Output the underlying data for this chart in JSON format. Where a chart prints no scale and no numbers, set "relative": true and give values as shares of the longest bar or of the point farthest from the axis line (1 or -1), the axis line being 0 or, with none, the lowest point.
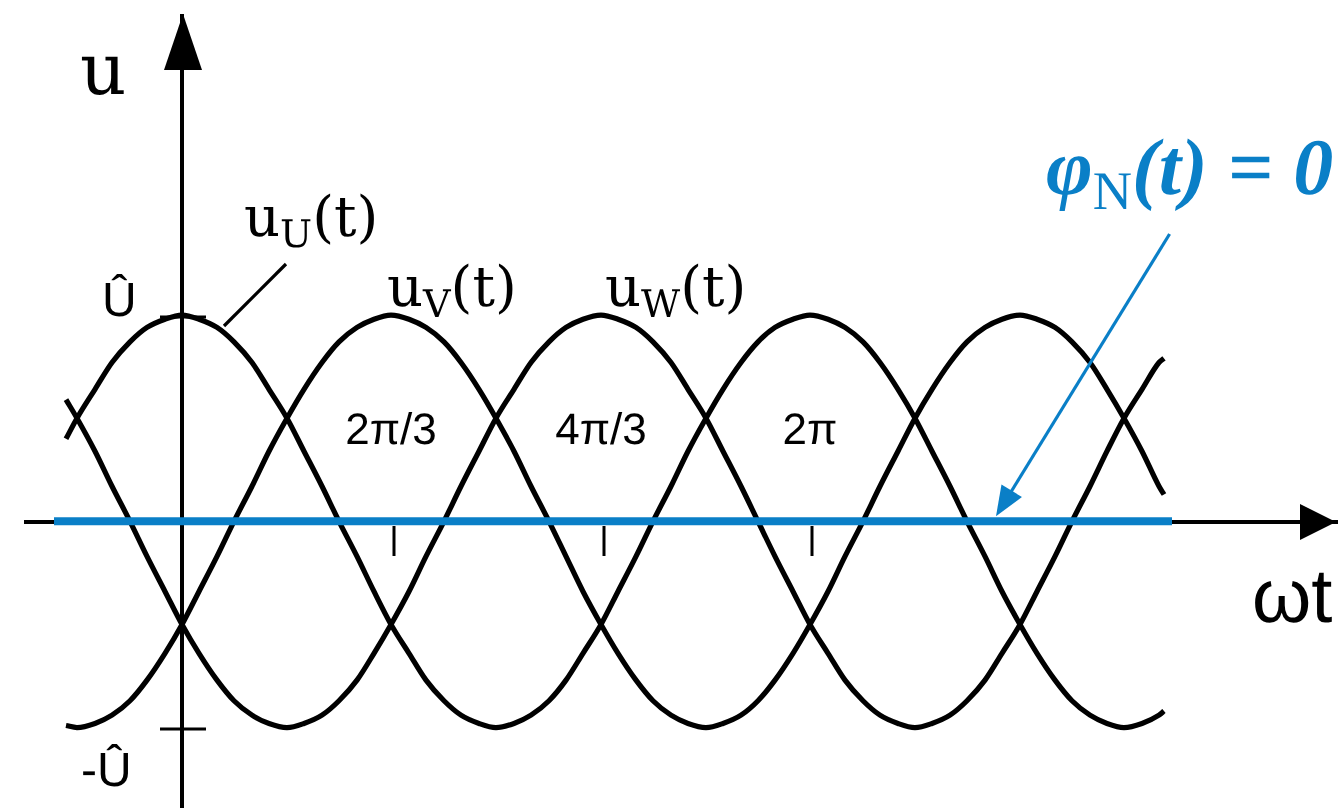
{
  "chart_data": {
    "type": "line",
    "xlabel": "ωt",
    "ylabel": "u",
    "marker": "none",
    "grid": false,
    "relative": true,
    "xlim": [
      -1.56,
      11.54
    ],
    "xticks": [
      {
        "value": 2.09,
        "label": "2π/3"
      },
      {
        "value": 4.19,
        "label": "4π/3"
      },
      {
        "value": 6.28,
        "label": "2π"
      }
    ],
    "annotations": [
      {
        "text": "Û",
        "x": 0,
        "y": 1
      },
      {
        "text": "-Û",
        "x": -1.05,
        "y": -1
      }
    ],
    "x": [
      -1.16,
      -1.05,
      -0.87,
      -0.7,
      -0.52,
      -0.35,
      -0.17,
      0,
      0.17,
      0.35,
      0.52,
      0.7,
      0.87,
      1.05,
      1.22,
      1.4,
      1.57,
      1.75,
      1.92,
      2.09,
      2.27,
      2.44,
      2.62,
      2.79,
      2.97,
      3.14,
      3.32,
      3.49,
      3.67,
      3.84,
      4.01,
      4.19,
      4.36,
      4.54,
      4.71,
      4.89,
      5.06,
      5.24,
      5.41,
      5.59,
      5.76,
      5.93,
      6.11,
      6.28,
      6.46,
      6.63,
      6.81,
      6.98,
      7.16,
      7.33,
      7.5,
      7.68,
      7.85,
      8.03,
      8.2,
      8.38,
      8.55,
      8.73,
      8.9,
      9.08,
      9.25,
      9.42,
      9.6,
      9.77,
      9.82
    ],
    "series": [
      {
        "name": "u$_{U}$(t)",
        "color": "#000000",
        "values": [
          0.4,
          0.5,
          0.64,
          0.77,
          0.87,
          0.94,
          0.98,
          1,
          0.98,
          0.94,
          0.87,
          0.77,
          0.64,
          0.5,
          0.34,
          0.17,
          0,
          -0.17,
          -0.34,
          -0.5,
          -0.64,
          -0.77,
          -0.87,
          -0.94,
          -0.98,
          -1,
          -0.98,
          -0.94,
          -0.87,
          -0.77,
          -0.64,
          -0.5,
          -0.34,
          -0.17,
          0,
          0.17,
          0.34,
          0.5,
          0.64,
          0.77,
          0.87,
          0.94,
          0.98,
          1,
          0.98,
          0.94,
          0.87,
          0.77,
          0.64,
          0.5,
          0.34,
          0.17,
          0,
          -0.17,
          -0.34,
          -0.5,
          -0.64,
          -0.77,
          -0.87,
          -0.94,
          -0.98,
          -1,
          -0.98,
          -0.94,
          -0.92
        ]
      },
      {
        "name": "u$_{V}$(t)",
        "color": "#000000",
        "values": [
          -0.99,
          -1,
          -0.98,
          -0.94,
          -0.87,
          -0.77,
          -0.64,
          -0.5,
          -0.34,
          -0.17,
          0,
          0.17,
          0.34,
          0.5,
          0.64,
          0.77,
          0.87,
          0.94,
          0.98,
          1,
          0.98,
          0.94,
          0.87,
          0.77,
          0.64,
          0.5,
          0.34,
          0.17,
          0,
          -0.17,
          -0.34,
          -0.5,
          -0.64,
          -0.77,
          -0.87,
          -0.94,
          -0.98,
          -1,
          -0.98,
          -0.94,
          -0.87,
          -0.77,
          -0.64,
          -0.5,
          -0.34,
          -0.17,
          0,
          0.17,
          0.34,
          0.5,
          0.64,
          0.77,
          0.87,
          0.94,
          0.98,
          1,
          0.98,
          0.94,
          0.87,
          0.77,
          0.64,
          0.5,
          0.34,
          0.17,
          0.13
        ]
      },
      {
        "name": "u$_{W}$(t)",
        "color": "#000000",
        "values": [
          0.59,
          0.5,
          0.34,
          0.17,
          0,
          -0.17,
          -0.34,
          -0.5,
          -0.64,
          -0.77,
          -0.87,
          -0.94,
          -0.98,
          -1,
          -0.98,
          -0.94,
          -0.87,
          -0.77,
          -0.64,
          -0.5,
          -0.34,
          -0.17,
          0,
          0.17,
          0.34,
          0.5,
          0.64,
          0.77,
          0.87,
          0.94,
          0.98,
          1,
          0.98,
          0.94,
          0.87,
          0.77,
          0.64,
          0.5,
          0.34,
          0.17,
          0,
          -0.17,
          -0.34,
          -0.5,
          -0.64,
          -0.77,
          -0.87,
          -0.94,
          -0.98,
          -1,
          -0.98,
          -0.94,
          -0.87,
          -0.77,
          -0.64,
          -0.5,
          -0.34,
          -0.17,
          0,
          0.17,
          0.34,
          0.5,
          0.64,
          0.77,
          0.79
        ]
      },
      {
        "name": "φ$_{N}$(t) = 0",
        "color": "#0a7fc7",
        "x": [
          -1.28,
          9.9
        ],
        "values": [
          0,
          0
        ]
      }
    ]
  }
}
